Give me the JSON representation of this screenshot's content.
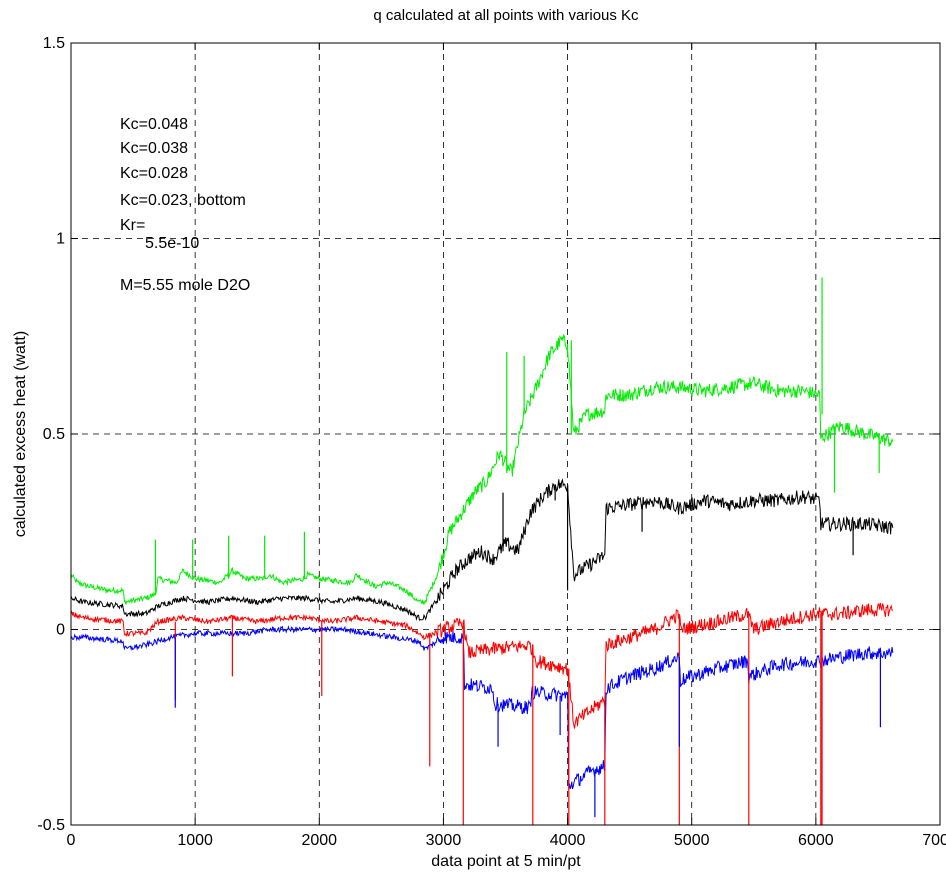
{
  "chart_data": {
    "type": "line",
    "title": "q calculated at all points with various Kc",
    "xlabel": "data point at 5 min/pt",
    "ylabel": "calculated excess heat (watt)",
    "xlim": [
      0,
      7000
    ],
    "ylim": [
      -0.5,
      1.5
    ],
    "x_ticks": [
      0,
      1000,
      2000,
      3000,
      4000,
      5000,
      6000,
      7000
    ],
    "y_ticks": [
      -0.5,
      0,
      0.5,
      1,
      1.5
    ],
    "x_tick_labels": [
      "0",
      "1000",
      "2000",
      "3000",
      "4000",
      "5000",
      "6000",
      "7000"
    ],
    "y_tick_labels": [
      "-0.5",
      "0",
      "0.5",
      "1",
      "1.5"
    ],
    "grid": true,
    "annotations": [
      "Kc=0.048",
      "Kc=0.038",
      "Kc=0.028",
      "Kc=0.023, bottom",
      "Kr=",
      "5.5e-10",
      "M=5.55 mole D2O"
    ],
    "series": [
      {
        "color": "#00ee00",
        "x": [
          0,
          50,
          150,
          300,
          420,
          430,
          600,
          680,
          700,
          850,
          900,
          1000,
          1200,
          1300,
          1400,
          1550,
          1600,
          1700,
          1880,
          1900,
          2000,
          2250,
          2300,
          2450,
          2550,
          2700,
          2800,
          2850,
          2950,
          3050,
          3150,
          3250,
          3350,
          3450,
          3550,
          3650,
          3750,
          3850,
          3950,
          4000,
          4050,
          4150,
          4300,
          4310,
          4500,
          4700,
          4900,
          5100,
          5300,
          5500,
          5700,
          5900,
          6030,
          6040,
          6200,
          6400,
          6620
        ],
        "values": [
          0.14,
          0.12,
          0.11,
          0.1,
          0.1,
          0.07,
          0.08,
          0.09,
          0.13,
          0.12,
          0.15,
          0.13,
          0.12,
          0.15,
          0.13,
          0.13,
          0.14,
          0.12,
          0.13,
          0.14,
          0.13,
          0.12,
          0.14,
          0.11,
          0.12,
          0.1,
          0.07,
          0.07,
          0.14,
          0.25,
          0.3,
          0.35,
          0.38,
          0.45,
          0.4,
          0.55,
          0.62,
          0.7,
          0.74,
          0.73,
          0.5,
          0.55,
          0.56,
          0.6,
          0.6,
          0.62,
          0.62,
          0.61,
          0.62,
          0.63,
          0.61,
          0.61,
          0.6,
          0.49,
          0.52,
          0.5,
          0.48
        ]
      },
      {
        "color": "#000000",
        "x": [
          0,
          100,
          420,
          430,
          600,
          700,
          900,
          1100,
          1300,
          1500,
          1700,
          1900,
          2100,
          2300,
          2500,
          2700,
          2800,
          2850,
          3000,
          3100,
          3200,
          3300,
          3400,
          3500,
          3600,
          3700,
          3800,
          3900,
          4000,
          4050,
          4200,
          4300,
          4310,
          4500,
          4700,
          4900,
          5100,
          5300,
          5500,
          5700,
          5900,
          6030,
          6040,
          6200,
          6400,
          6620
        ],
        "values": [
          0.08,
          0.07,
          0.06,
          0.04,
          0.04,
          0.06,
          0.08,
          0.07,
          0.08,
          0.07,
          0.08,
          0.08,
          0.07,
          0.08,
          0.07,
          0.05,
          0.03,
          0.03,
          0.1,
          0.15,
          0.18,
          0.2,
          0.18,
          0.22,
          0.2,
          0.3,
          0.34,
          0.37,
          0.37,
          0.14,
          0.17,
          0.19,
          0.31,
          0.32,
          0.33,
          0.31,
          0.33,
          0.32,
          0.33,
          0.33,
          0.34,
          0.33,
          0.27,
          0.27,
          0.27,
          0.26
        ]
      },
      {
        "color": "#ff0000",
        "x": [
          0,
          100,
          420,
          430,
          600,
          700,
          900,
          1100,
          1300,
          1500,
          1700,
          1900,
          2100,
          2300,
          2500,
          2700,
          2800,
          2850,
          3000,
          3100,
          3160,
          3200,
          3400,
          3700,
          3750,
          4000,
          4050,
          4300,
          4310,
          4500,
          4700,
          4900,
          4910,
          5200,
          5450,
          5500,
          5700,
          6000,
          6040,
          6200,
          6400,
          6620
        ],
        "values": [
          0.04,
          0.03,
          0.02,
          -0.01,
          -0.01,
          0.02,
          0.03,
          0.02,
          0.03,
          0.02,
          0.03,
          0.03,
          0.02,
          0.03,
          0.02,
          0.01,
          -0.01,
          -0.02,
          0.0,
          0.01,
          0.02,
          -0.06,
          -0.05,
          -0.04,
          -0.08,
          -0.1,
          -0.24,
          -0.18,
          -0.04,
          -0.02,
          0.0,
          0.04,
          0.0,
          0.02,
          0.04,
          0.0,
          0.02,
          0.04,
          0.04,
          0.04,
          0.05,
          0.05
        ]
      },
      {
        "color": "#0000ff",
        "x": [
          0,
          100,
          420,
          430,
          600,
          800,
          1000,
          1200,
          1400,
          1600,
          1800,
          2000,
          2200,
          2400,
          2600,
          2800,
          2850,
          3000,
          3160,
          3170,
          3400,
          3410,
          3700,
          3710,
          4000,
          4010,
          4200,
          4300,
          4310,
          4500,
          4700,
          4900,
          4910,
          5200,
          5450,
          5460,
          5700,
          6000,
          6040,
          6200,
          6400,
          6620
        ],
        "values": [
          -0.02,
          -0.02,
          -0.03,
          -0.05,
          -0.04,
          -0.02,
          -0.01,
          -0.01,
          -0.01,
          0.0,
          0.0,
          0.0,
          0.0,
          -0.01,
          -0.02,
          -0.03,
          -0.05,
          -0.02,
          -0.02,
          -0.14,
          -0.15,
          -0.19,
          -0.2,
          -0.16,
          -0.17,
          -0.4,
          -0.36,
          -0.35,
          -0.15,
          -0.12,
          -0.1,
          -0.07,
          -0.13,
          -0.1,
          -0.08,
          -0.12,
          -0.09,
          -0.08,
          -0.08,
          -0.07,
          -0.06,
          -0.06
        ]
      }
    ],
    "spikes": [
      {
        "color": "#00ee00",
        "x": 680,
        "y0": 0.09,
        "y1": 0.23
      },
      {
        "color": "#00ee00",
        "x": 980,
        "y0": 0.13,
        "y1": 0.23
      },
      {
        "color": "#00ee00",
        "x": 1270,
        "y0": 0.13,
        "y1": 0.24
      },
      {
        "color": "#00ee00",
        "x": 1560,
        "y0": 0.13,
        "y1": 0.24
      },
      {
        "color": "#00ee00",
        "x": 1880,
        "y0": 0.13,
        "y1": 0.25
      },
      {
        "color": "#00ee00",
        "x": 3510,
        "y0": 0.4,
        "y1": 0.71
      },
      {
        "color": "#00ee00",
        "x": 3650,
        "y0": 0.55,
        "y1": 0.7
      },
      {
        "color": "#00ee00",
        "x": 4000,
        "y0": 0.73,
        "y1": 0.7
      },
      {
        "color": "#00ee00",
        "x": 4030,
        "y0": 0.5,
        "y1": 0.74
      },
      {
        "color": "#00ee00",
        "x": 6050,
        "y0": 0.55,
        "y1": 0.9
      },
      {
        "color": "#00ee00",
        "x": 6150,
        "y0": 0.52,
        "y1": 0.35
      },
      {
        "color": "#00ee00",
        "x": 6510,
        "y0": 0.5,
        "y1": 0.4
      },
      {
        "color": "#000000",
        "x": 3480,
        "y0": 0.2,
        "y1": 0.35
      },
      {
        "color": "#000000",
        "x": 3900,
        "y0": 0.37,
        "y1": 0.33
      },
      {
        "color": "#000000",
        "x": 4000,
        "y0": 0.37,
        "y1": 0.1
      },
      {
        "color": "#000000",
        "x": 4600,
        "y0": 0.32,
        "y1": 0.25
      },
      {
        "color": "#000000",
        "x": 6300,
        "y0": 0.27,
        "y1": 0.19
      },
      {
        "color": "#ff0000",
        "x": 840,
        "y0": 0.02,
        "y1": -0.18
      },
      {
        "color": "#ff0000",
        "x": 1300,
        "y0": 0.03,
        "y1": -0.12
      },
      {
        "color": "#ff0000",
        "x": 2020,
        "y0": 0.02,
        "y1": -0.17
      },
      {
        "color": "#ff0000",
        "x": 2890,
        "y0": -0.01,
        "y1": -0.35
      },
      {
        "color": "#ff0000",
        "x": 3160,
        "y0": 0.02,
        "y1": -0.5
      },
      {
        "color": "#ff0000",
        "x": 3720,
        "y0": -0.04,
        "y1": -0.5
      },
      {
        "color": "#ff0000",
        "x": 4010,
        "y0": -0.1,
        "y1": -0.5
      },
      {
        "color": "#ff0000",
        "x": 4300,
        "y0": -0.18,
        "y1": -0.5
      },
      {
        "color": "#ff0000",
        "x": 4900,
        "y0": 0.04,
        "y1": -0.5
      },
      {
        "color": "#ff0000",
        "x": 5460,
        "y0": 0.04,
        "y1": -0.5
      },
      {
        "color": "#ff0000",
        "x": 6040,
        "y0": 0.04,
        "y1": -0.5
      },
      {
        "color": "#ff0000",
        "x": 6050,
        "y0": 0.04,
        "y1": -0.5
      },
      {
        "color": "#0000ff",
        "x": 840,
        "y0": -0.02,
        "y1": -0.2
      },
      {
        "color": "#0000ff",
        "x": 3440,
        "y0": -0.19,
        "y1": -0.3
      },
      {
        "color": "#0000ff",
        "x": 3940,
        "y0": -0.17,
        "y1": -0.27
      },
      {
        "color": "#0000ff",
        "x": 4220,
        "y0": -0.36,
        "y1": -0.48
      },
      {
        "color": "#0000ff",
        "x": 4900,
        "y0": -0.07,
        "y1": -0.3
      },
      {
        "color": "#0000ff",
        "x": 6520,
        "y0": -0.06,
        "y1": -0.25
      }
    ]
  }
}
